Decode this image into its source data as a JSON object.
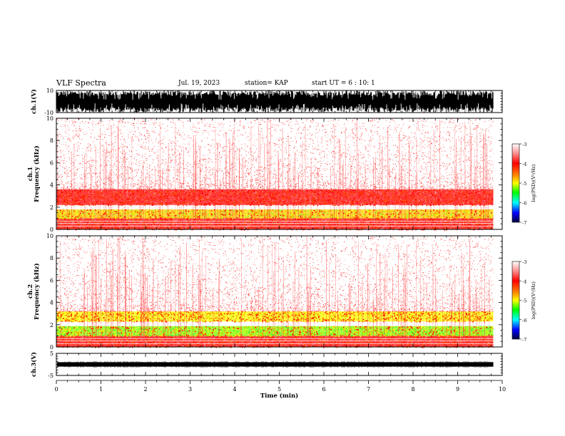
{
  "header": {
    "title": "VLF Spectra",
    "date": "Jul. 19, 2023",
    "station": "station= KAP",
    "start": "start UT =  6 : 10: 1"
  },
  "chart_data": [
    {
      "type": "line",
      "panel": "ch1-waveform",
      "ylabel": "ch.1(V)",
      "ylim": [
        -10,
        10
      ],
      "yticks": [
        "10",
        "-10"
      ],
      "xlim": [
        0,
        10
      ],
      "color": "#000000"
    },
    {
      "type": "heatmap",
      "panel": "ch1-spectrogram",
      "ylabel": "ch.1\nFrequency (kHz)",
      "ylim": [
        0,
        10
      ],
      "yticks": [
        "0",
        "2",
        "4",
        "6",
        "8",
        "10"
      ],
      "xlim": [
        0,
        10
      ],
      "data_end_min": 9.8,
      "bands_khz": [
        {
          "from": 0.0,
          "to": 1.0,
          "level": "red-orange"
        },
        {
          "from": 1.0,
          "to": 1.8,
          "level": "yellow-green"
        },
        {
          "from": 2.2,
          "to": 3.6,
          "level": "red-orange"
        },
        {
          "from": 3.6,
          "to": 10.0,
          "level": "sparse-red"
        }
      ]
    },
    {
      "type": "heatmap",
      "panel": "ch2-spectrogram",
      "ylabel": "ch.2\nFrequency (kHz)",
      "ylim": [
        0,
        10
      ],
      "yticks": [
        "0",
        "2",
        "4",
        "6",
        "8",
        "10"
      ],
      "xlim": [
        0,
        10
      ],
      "data_end_min": 9.8,
      "bands_khz": [
        {
          "from": 0.0,
          "to": 1.0,
          "level": "red-orange"
        },
        {
          "from": 1.0,
          "to": 1.9,
          "level": "green-yellow"
        },
        {
          "from": 2.3,
          "to": 3.2,
          "level": "yellow-orange"
        },
        {
          "from": 3.2,
          "to": 10.0,
          "level": "sparse-red"
        }
      ]
    },
    {
      "type": "line",
      "panel": "ch3-waveform",
      "ylabel": "ch.3(V)",
      "ylim": [
        -5,
        5
      ],
      "yticks": [
        "5",
        "-5"
      ],
      "xlim": [
        0,
        10
      ],
      "xlabel": "Time (min)",
      "xticks": [
        "0",
        "1",
        "2",
        "3",
        "4",
        "5",
        "6",
        "7",
        "8",
        "9",
        "10"
      ],
      "color": "#000000"
    }
  ],
  "colorbar": {
    "label": "log(PSD)(V²/Hz)",
    "ticks": [
      "-3",
      "-4",
      "-5",
      "-6",
      "-7"
    ],
    "range": [
      -7,
      -3
    ]
  }
}
